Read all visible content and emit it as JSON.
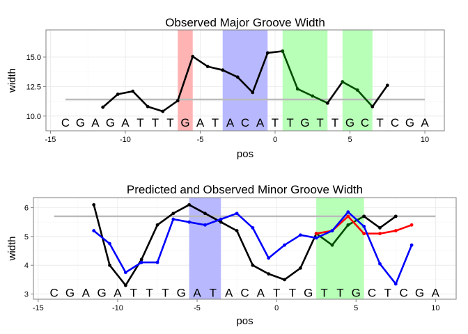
{
  "chart_data": [
    {
      "type": "line",
      "title": "Observed Major Groove Width",
      "xlabel": "pos",
      "ylabel": "width",
      "xlim": [
        -15.3,
        11.3
      ],
      "ylim": [
        8.75,
        17.3
      ],
      "xticks": [
        -15,
        -10,
        -5,
        0,
        5,
        10
      ],
      "yticks": [
        10.0,
        12.5,
        15.0
      ],
      "ytick_labels": [
        "10.0",
        "12.5",
        "15.0"
      ],
      "grid": true,
      "sequence": {
        "y": 9.45,
        "letters": [
          {
            "pos": -14,
            "base": "C"
          },
          {
            "pos": -13,
            "base": "G"
          },
          {
            "pos": -12,
            "base": "A"
          },
          {
            "pos": -11,
            "base": "G"
          },
          {
            "pos": -10,
            "base": "A"
          },
          {
            "pos": -9,
            "base": "T"
          },
          {
            "pos": -8,
            "base": "T"
          },
          {
            "pos": -7,
            "base": "T"
          },
          {
            "pos": -6,
            "base": "G"
          },
          {
            "pos": -5,
            "base": "A"
          },
          {
            "pos": -4,
            "base": "T"
          },
          {
            "pos": -3,
            "base": "A"
          },
          {
            "pos": -2,
            "base": "C"
          },
          {
            "pos": -1,
            "base": "A"
          },
          {
            "pos": 0,
            "base": "T"
          },
          {
            "pos": 1,
            "base": "T"
          },
          {
            "pos": 2,
            "base": "G"
          },
          {
            "pos": 3,
            "base": "T"
          },
          {
            "pos": 4,
            "base": "T"
          },
          {
            "pos": 5,
            "base": "G"
          },
          {
            "pos": 6,
            "base": "C"
          },
          {
            "pos": 7,
            "base": "T"
          },
          {
            "pos": 8,
            "base": "C"
          },
          {
            "pos": 9,
            "base": "G"
          },
          {
            "pos": 10,
            "base": "A"
          }
        ]
      },
      "highlights": [
        {
          "x0": -6.5,
          "x1": -5.5,
          "color": "#ffb3b3"
        },
        {
          "x0": -3.5,
          "x1": -0.5,
          "color": "#b8b8ff"
        },
        {
          "x0": 0.5,
          "x1": 3.5,
          "color": "#b8ffb8"
        },
        {
          "x0": 4.5,
          "x1": 6.5,
          "color": "#b8ffb8"
        }
      ],
      "reference_line": {
        "y": 11.4,
        "x0": -14,
        "x1": 10,
        "color": "#bbbbbb"
      },
      "series": [
        {
          "color": "#000000",
          "x": [
            -11.5,
            -10.5,
            -9.5,
            -8.5,
            -7.5,
            -6.5,
            -5.5,
            -4.5,
            -3.5,
            -2.5,
            -1.5,
            -0.5,
            0.5
          ],
          "y": [
            10.75,
            11.85,
            12.1,
            10.8,
            10.4,
            11.3,
            15.05,
            14.2,
            13.9,
            13.3,
            12.0,
            15.35,
            15.5
          ]
        },
        {
          "color": "#004d00",
          "x": [
            0.5,
            1.5,
            2.5,
            3.5
          ],
          "y": [
            15.5,
            12.3,
            11.7,
            11.1
          ]
        },
        {
          "color": "#000000",
          "x": [
            3.5,
            4.5
          ],
          "y": [
            11.1,
            12.9
          ]
        },
        {
          "color": "#004d00",
          "x": [
            4.5,
            5.5,
            6.5
          ],
          "y": [
            12.9,
            12.2,
            10.8
          ]
        },
        {
          "color": "#000000",
          "x": [
            6.5,
            7.5
          ],
          "y": [
            10.8,
            12.6
          ]
        }
      ]
    },
    {
      "type": "line",
      "title": "Predicted and Observed Minor Groove Width",
      "xlabel": "pos",
      "ylabel": "width",
      "xlim": [
        -15.3,
        11.3
      ],
      "ylim": [
        2.82,
        6.35
      ],
      "xticks": [
        -15,
        -10,
        -5,
        0,
        5,
        10
      ],
      "yticks": [
        3,
        4,
        5,
        6
      ],
      "ytick_labels": [
        "3",
        "4",
        "5",
        "6"
      ],
      "grid": true,
      "sequence": {
        "y": 3.05,
        "letters": [
          {
            "pos": -14,
            "base": "C"
          },
          {
            "pos": -13,
            "base": "G"
          },
          {
            "pos": -12,
            "base": "A"
          },
          {
            "pos": -11,
            "base": "G"
          },
          {
            "pos": -10,
            "base": "A"
          },
          {
            "pos": -9,
            "base": "T"
          },
          {
            "pos": -8,
            "base": "T"
          },
          {
            "pos": -7,
            "base": "T"
          },
          {
            "pos": -6,
            "base": "G"
          },
          {
            "pos": -5,
            "base": "A"
          },
          {
            "pos": -4,
            "base": "T"
          },
          {
            "pos": -3,
            "base": "A"
          },
          {
            "pos": -2,
            "base": "C"
          },
          {
            "pos": -1,
            "base": "A"
          },
          {
            "pos": 0,
            "base": "T"
          },
          {
            "pos": 1,
            "base": "T"
          },
          {
            "pos": 2,
            "base": "G"
          },
          {
            "pos": 3,
            "base": "T"
          },
          {
            "pos": 4,
            "base": "T"
          },
          {
            "pos": 5,
            "base": "G"
          },
          {
            "pos": 6,
            "base": "C"
          },
          {
            "pos": 7,
            "base": "T"
          },
          {
            "pos": 8,
            "base": "C"
          },
          {
            "pos": 9,
            "base": "G"
          },
          {
            "pos": 10,
            "base": "A"
          }
        ]
      },
      "highlights": [
        {
          "x0": -5.5,
          "x1": -3.5,
          "color": "#b8b8ff"
        },
        {
          "x0": 2.5,
          "x1": 5.5,
          "color": "#b8ffb8"
        }
      ],
      "reference_line": {
        "y": 5.7,
        "x0": -14,
        "x1": 10,
        "color": "#bbbbbb"
      },
      "series": [
        {
          "color": "#000000",
          "x": [
            -11.5,
            -10.5,
            -9.5,
            -8.5,
            -7.5,
            -6.5,
            -5.5,
            -4.5,
            -3.5,
            -2.5,
            -1.5,
            -0.5,
            0.5,
            1.5,
            2.5
          ],
          "y": [
            6.1,
            4.0,
            3.3,
            4.2,
            5.4,
            5.8,
            6.1,
            5.8,
            5.5,
            5.2,
            4.0,
            3.7,
            3.5,
            3.9,
            5.1
          ]
        },
        {
          "color": "#004d00",
          "x": [
            2.5,
            3.5,
            4.5,
            5.5
          ],
          "y": [
            5.1,
            4.7,
            5.4,
            5.7
          ]
        },
        {
          "color": "#000000",
          "x": [
            5.5,
            6.5,
            7.5
          ],
          "y": [
            5.7,
            5.3,
            5.7
          ]
        },
        {
          "color": "#ff0000",
          "x": [
            2.5,
            3.5,
            4.5,
            5.5,
            6.5,
            7.5,
            8.5
          ],
          "y": [
            5.1,
            5.2,
            5.7,
            5.1,
            5.1,
            5.2,
            5.4
          ]
        },
        {
          "color": "#0000ff",
          "x": [
            -11.5,
            -10.5,
            -9.5,
            -8.5,
            -7.5,
            -6.5,
            -5.5,
            -4.5,
            -3.5,
            -2.5,
            -1.5,
            -0.5,
            0.5,
            1.5,
            2.5,
            3.5,
            4.5,
            5.5,
            6.5,
            7.5,
            8.5
          ],
          "y": [
            5.2,
            4.75,
            3.75,
            4.1,
            4.1,
            5.6,
            5.5,
            5.4,
            5.6,
            5.8,
            5.3,
            4.25,
            4.7,
            5.05,
            4.95,
            5.2,
            5.85,
            5.35,
            4.05,
            3.35,
            4.7
          ]
        }
      ]
    }
  ]
}
